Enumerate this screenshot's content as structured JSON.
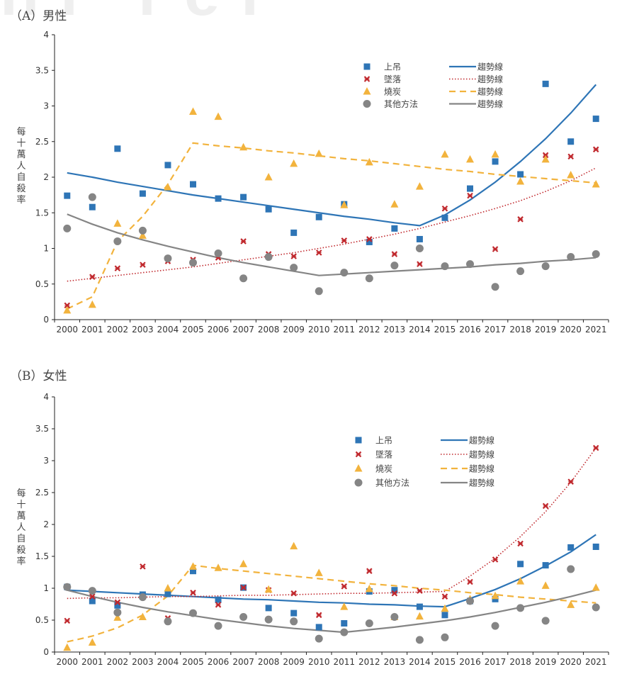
{
  "watermark": "hi rei",
  "chart_data": [
    {
      "type": "scatter",
      "title": "（A）男性",
      "xlabel": "",
      "ylabel": "每十萬人自殺率",
      "ylim": [
        0,
        4
      ],
      "yticks": [
        "0",
        "0.5",
        "1",
        "1.5",
        "2",
        "2.5",
        "3",
        "3.5",
        "4"
      ],
      "grid": false,
      "legend_position": "top-right",
      "categories": [
        "2000",
        "2001",
        "2002",
        "2003",
        "2004",
        "2005",
        "2006",
        "2007",
        "2008",
        "2009",
        "2010",
        "2011",
        "2012",
        "2013",
        "2014",
        "2015",
        "2016",
        "2017",
        "2018",
        "2019",
        "2020",
        "2021"
      ],
      "series": [
        {
          "name": "上吊",
          "marker": "square",
          "color": "#2E75B6",
          "values": [
            1.74,
            1.58,
            2.4,
            1.77,
            2.17,
            1.9,
            1.7,
            1.72,
            1.55,
            1.22,
            1.44,
            1.62,
            1.09,
            1.28,
            1.13,
            1.43,
            1.84,
            2.22,
            2.04,
            3.31,
            2.5,
            2.82
          ],
          "trend_label": "趨勢線",
          "trend_style": "solid",
          "trend": [
            2.06,
            2.0,
            1.93,
            1.87,
            1.81,
            1.75,
            1.7,
            1.65,
            1.6,
            1.55,
            1.5,
            1.45,
            1.41,
            1.36,
            1.32,
            1.47,
            1.68,
            1.93,
            2.22,
            2.54,
            2.9,
            3.3
          ]
        },
        {
          "name": "墜落",
          "marker": "x",
          "color": "#C0282D",
          "values": [
            0.2,
            0.6,
            0.72,
            0.77,
            0.82,
            0.84,
            0.87,
            1.1,
            0.92,
            0.89,
            0.94,
            1.11,
            1.13,
            0.92,
            0.78,
            1.56,
            1.74,
            0.99,
            1.41,
            2.31,
            2.29,
            2.39
          ],
          "trend_label": "趨勢線",
          "trend_style": "dotted",
          "trend": [
            0.54,
            0.58,
            0.62,
            0.66,
            0.7,
            0.74,
            0.79,
            0.84,
            0.89,
            0.94,
            1.0,
            1.06,
            1.13,
            1.2,
            1.28,
            1.37,
            1.46,
            1.56,
            1.67,
            1.8,
            1.95,
            2.13
          ]
        },
        {
          "name": "燒炭",
          "marker": "triangle",
          "color": "#F2B33D",
          "values": [
            0.13,
            0.21,
            1.35,
            1.18,
            1.86,
            2.92,
            2.85,
            2.42,
            2.0,
            2.19,
            2.33,
            1.61,
            2.21,
            1.62,
            1.87,
            2.32,
            2.25,
            2.32,
            1.94,
            2.25,
            2.03,
            1.9
          ],
          "trend_label": "趨勢線",
          "trend_style": "dashed",
          "trend": [
            0.15,
            0.32,
            1.1,
            1.45,
            1.9,
            2.48,
            2.44,
            2.41,
            2.37,
            2.34,
            2.3,
            2.26,
            2.23,
            2.19,
            2.15,
            2.11,
            2.08,
            2.04,
            2.01,
            1.98,
            1.95,
            1.92
          ]
        },
        {
          "name": "其他方法",
          "marker": "circle",
          "color": "#858585",
          "values": [
            1.28,
            1.72,
            1.1,
            1.25,
            0.86,
            0.8,
            0.93,
            0.58,
            0.88,
            0.73,
            0.4,
            0.66,
            0.58,
            0.76,
            1.0,
            0.75,
            0.78,
            0.46,
            0.68,
            0.75,
            0.88,
            0.92
          ],
          "trend_label": "趨勢線",
          "trend_style": "solid",
          "trend": [
            1.48,
            1.34,
            1.22,
            1.12,
            1.03,
            0.95,
            0.87,
            0.8,
            0.74,
            0.68,
            0.62,
            0.64,
            0.66,
            0.68,
            0.7,
            0.72,
            0.74,
            0.77,
            0.79,
            0.82,
            0.84,
            0.87
          ]
        }
      ]
    },
    {
      "type": "scatter",
      "title": "（B）女性",
      "xlabel": "",
      "ylabel": "每十萬人自殺率",
      "ylim": [
        0,
        4
      ],
      "yticks": [
        "0",
        "0.5",
        "1",
        "1.5",
        "2",
        "2.5",
        "3",
        "3.5",
        "4"
      ],
      "grid": false,
      "legend_position": "top-right",
      "categories": [
        "2000",
        "2001",
        "2002",
        "2003",
        "2004",
        "2005",
        "2006",
        "2007",
        "2008",
        "2009",
        "2010",
        "2011",
        "2012",
        "2013",
        "2014",
        "2015",
        "2016",
        "2017",
        "2018",
        "2019",
        "2020",
        "2021"
      ],
      "series": [
        {
          "name": "上吊",
          "marker": "square",
          "color": "#2E75B6",
          "values": [
            1.02,
            0.8,
            0.73,
            0.9,
            0.91,
            1.27,
            0.82,
            1.01,
            0.69,
            0.61,
            0.39,
            0.45,
            0.95,
            0.97,
            0.71,
            0.58,
            0.8,
            0.83,
            1.38,
            1.36,
            1.64,
            1.65
          ],
          "trend_label": "趨勢線",
          "trend_style": "solid",
          "trend": [
            0.97,
            0.95,
            0.93,
            0.91,
            0.89,
            0.87,
            0.85,
            0.83,
            0.82,
            0.8,
            0.78,
            0.77,
            0.75,
            0.74,
            0.72,
            0.71,
            0.84,
            0.98,
            1.15,
            1.35,
            1.57,
            1.84
          ]
        },
        {
          "name": "墜落",
          "marker": "x",
          "color": "#C0282D",
          "values": [
            0.49,
            0.87,
            0.78,
            1.34,
            0.53,
            0.93,
            0.74,
            1.01,
            0.97,
            0.92,
            0.58,
            1.03,
            1.27,
            0.92,
            0.96,
            0.87,
            1.1,
            1.45,
            1.7,
            2.29,
            2.67,
            3.2
          ],
          "trend_label": "趨勢線",
          "trend_style": "dotted",
          "trend": [
            0.84,
            0.85,
            0.85,
            0.86,
            0.87,
            0.87,
            0.88,
            0.89,
            0.89,
            0.9,
            0.91,
            0.92,
            0.92,
            0.93,
            0.94,
            0.95,
            1.19,
            1.47,
            1.81,
            2.2,
            2.66,
            3.2
          ]
        },
        {
          "name": "燒炭",
          "marker": "triangle",
          "color": "#F2B33D",
          "values": [
            0.07,
            0.15,
            0.54,
            0.55,
            1.0,
            1.34,
            1.32,
            1.38,
            0.98,
            1.66,
            1.24,
            0.71,
            0.99,
            0.55,
            0.56,
            0.68,
            0.83,
            0.88,
            1.11,
            1.04,
            0.74,
            1.01
          ],
          "trend_label": "趨勢線",
          "trend_style": "dashed",
          "trend": [
            0.16,
            0.25,
            0.38,
            0.58,
            0.88,
            1.36,
            1.31,
            1.27,
            1.23,
            1.19,
            1.15,
            1.11,
            1.07,
            1.04,
            1.0,
            0.97,
            0.93,
            0.9,
            0.86,
            0.83,
            0.8,
            0.77
          ]
        },
        {
          "name": "其他方法",
          "marker": "circle",
          "color": "#858585",
          "values": [
            1.02,
            0.96,
            0.62,
            0.86,
            0.48,
            0.61,
            0.41,
            0.55,
            0.51,
            0.48,
            0.21,
            0.31,
            0.45,
            0.55,
            0.19,
            0.23,
            0.8,
            0.41,
            0.69,
            0.49,
            1.3,
            0.7
          ],
          "trend_label": "趨勢線",
          "trend_style": "solid",
          "trend": [
            0.97,
            0.87,
            0.78,
            0.7,
            0.63,
            0.57,
            0.51,
            0.46,
            0.41,
            0.37,
            0.34,
            0.31,
            0.35,
            0.39,
            0.44,
            0.49,
            0.55,
            0.62,
            0.7,
            0.78,
            0.87,
            0.97
          ]
        }
      ]
    }
  ]
}
